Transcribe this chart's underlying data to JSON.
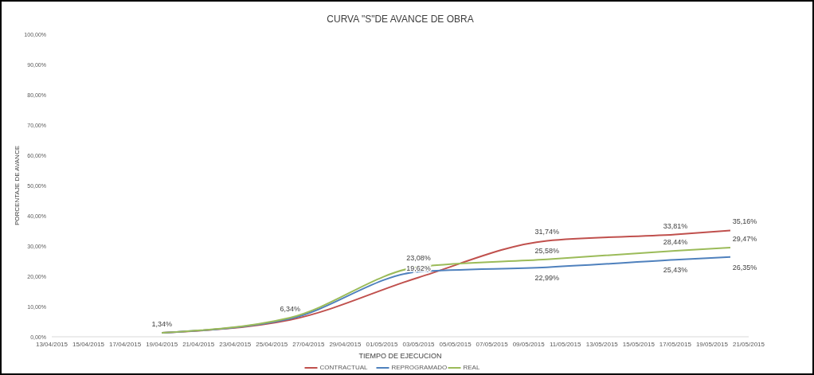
{
  "chart_data": {
    "type": "line",
    "title": "CURVA \"S\"DE AVANCE DE OBRA",
    "xlabel": "TIEMPO DE EJECUCION",
    "ylabel": "PORCENTAJE DE AVANCE",
    "x": [
      "2015-04-19",
      "2015-04-26",
      "2015-05-03",
      "2015-05-10",
      "2015-05-17",
      "2015-05-20"
    ],
    "series": [
      {
        "name": "CONTRACTUAL",
        "color": "#c0504d",
        "values": [
          1.34,
          5.6,
          19.62,
          31.74,
          33.81,
          35.16
        ],
        "value_labels": [
          "1,34%",
          null,
          "19,62%",
          "31,74%",
          "33,81%",
          "35,16%"
        ]
      },
      {
        "name": "REPROGRAMADO",
        "color": "#4f81bd",
        "values": [
          1.3,
          6.0,
          21.5,
          22.99,
          25.43,
          26.35
        ],
        "value_labels": [
          null,
          null,
          null,
          "22,99%",
          "25,43%",
          "26,35%"
        ]
      },
      {
        "name": "REAL",
        "color": "#9bbb59",
        "values": [
          1.3,
          6.34,
          23.08,
          25.58,
          28.44,
          29.47
        ],
        "value_labels": [
          null,
          "6,34%",
          "23,08%",
          "25,58%",
          "28,44%",
          "29,47%"
        ]
      }
    ],
    "xlim": [
      "2015-04-13",
      "2015-05-21"
    ],
    "xticks": [
      {
        "value": "2015-04-13",
        "label": "13/04/2015"
      },
      {
        "value": "2015-04-15",
        "label": "15/04/2015"
      },
      {
        "value": "2015-04-17",
        "label": "17/04/2015"
      },
      {
        "value": "2015-04-19",
        "label": "19/04/2015"
      },
      {
        "value": "2015-04-21",
        "label": "21/04/2015"
      },
      {
        "value": "2015-04-23",
        "label": "23/04/2015"
      },
      {
        "value": "2015-04-25",
        "label": "25/04/2015"
      },
      {
        "value": "2015-04-27",
        "label": "27/04/2015"
      },
      {
        "value": "2015-04-29",
        "label": "29/04/2015"
      },
      {
        "value": "2015-05-01",
        "label": "01/05/2015"
      },
      {
        "value": "2015-05-03",
        "label": "03/05/2015"
      },
      {
        "value": "2015-05-05",
        "label": "05/05/2015"
      },
      {
        "value": "2015-05-07",
        "label": "07/05/2015"
      },
      {
        "value": "2015-05-09",
        "label": "09/05/2015"
      },
      {
        "value": "2015-05-11",
        "label": "11/05/2015"
      },
      {
        "value": "2015-05-13",
        "label": "13/05/2015"
      },
      {
        "value": "2015-05-15",
        "label": "15/05/2015"
      },
      {
        "value": "2015-05-17",
        "label": "17/05/2015"
      },
      {
        "value": "2015-05-19",
        "label": "19/05/2015"
      },
      {
        "value": "2015-05-21",
        "label": "21/05/2015"
      }
    ],
    "ylim": [
      0,
      100
    ],
    "yticks": [
      {
        "value": 0,
        "label": "0,00%"
      },
      {
        "value": 10,
        "label": "10,00%"
      },
      {
        "value": 20,
        "label": "20,00%"
      },
      {
        "value": 30,
        "label": "30,00%"
      },
      {
        "value": 40,
        "label": "40,00%"
      },
      {
        "value": 50,
        "label": "50,00%"
      },
      {
        "value": 60,
        "label": "60,00%"
      },
      {
        "value": 70,
        "label": "70,00%"
      },
      {
        "value": 80,
        "label": "80,00%"
      },
      {
        "value": 90,
        "label": "90,00%"
      },
      {
        "value": 100,
        "label": "100,00%"
      }
    ],
    "legend": "bottom",
    "grid": false,
    "marker": "none",
    "line_style": "solid"
  }
}
